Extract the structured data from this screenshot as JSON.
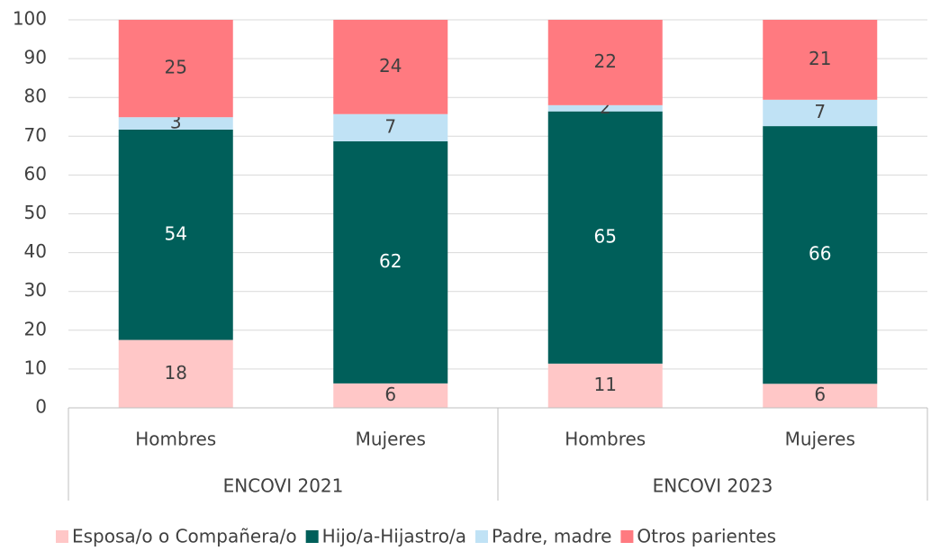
{
  "chart_data": {
    "type": "stacked_bar",
    "categories": [
      "Hombres",
      "Mujeres",
      "Hombres",
      "Mujeres"
    ],
    "category_groups": [
      "ENCOVI 2021",
      "ENCOVI 2023"
    ],
    "series": [
      {
        "name": "Esposa/o o Compañera/o",
        "color": "#ffc7c7",
        "values": [
          17.5,
          6.3,
          11.4,
          6.2
        ],
        "value_labels": [
          "18",
          "6",
          "11",
          "6"
        ]
      },
      {
        "name": "Hijo/a-Hijastro/a",
        "color": "#005f5a",
        "values": [
          54.2,
          62.4,
          65.0,
          66.4
        ],
        "value_labels": [
          "54",
          "62",
          "65",
          "66"
        ]
      },
      {
        "name": "Padre, madre",
        "color": "#c0e2f5",
        "values": [
          3.2,
          7.0,
          1.6,
          6.8
        ],
        "value_labels": [
          "3",
          "7",
          "2",
          "7"
        ]
      },
      {
        "name": "Otros parientes",
        "color": "#ff7a80",
        "values": [
          25.1,
          24.3,
          22.0,
          20.6
        ],
        "value_labels": [
          "25",
          "24",
          "22",
          "21"
        ]
      }
    ],
    "ylim": [
      0,
      100
    ],
    "yticks": [
      0,
      10,
      20,
      30,
      40,
      50,
      60,
      70,
      80,
      90,
      100
    ],
    "grid": true,
    "legend": "bottom"
  }
}
